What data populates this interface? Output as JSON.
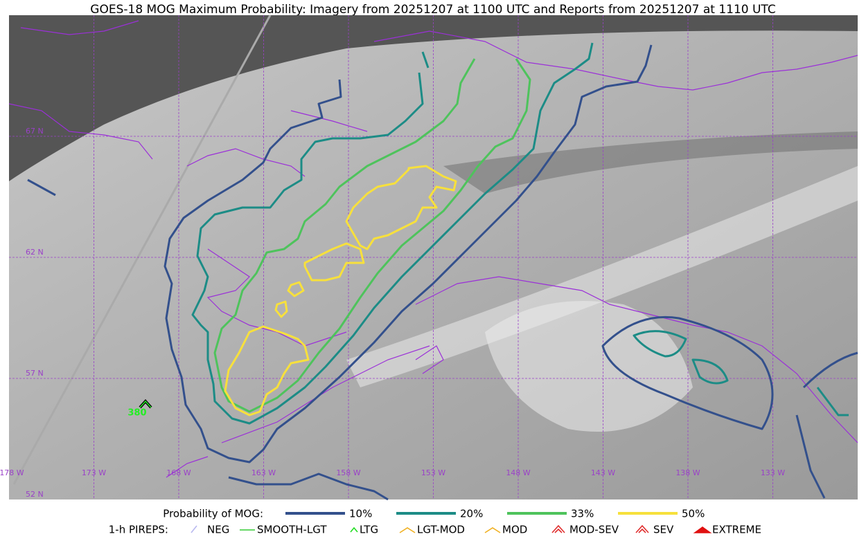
{
  "title": "GOES-18 MOG Maximum Probability: Imagery from 20251207 at 1100 UTC and Reports from 20251207 at 1110 UTC",
  "map": {
    "lat_labels": [
      "67 N",
      "62 N",
      "57 N",
      "52 N"
    ],
    "lon_labels": [
      "178 W",
      "173 W",
      "168 W",
      "163 W",
      "158 W",
      "153 W",
      "148 W",
      "143 W",
      "138 W",
      "133 W"
    ],
    "reports": [
      {
        "label": "380"
      }
    ]
  },
  "legend": {
    "probability": {
      "title": "Probability of MOG:",
      "items": [
        {
          "label": "10%",
          "color": "#33508c"
        },
        {
          "label": "20%",
          "color": "#1c8c86"
        },
        {
          "label": "33%",
          "color": "#4ec35c"
        },
        {
          "label": "50%",
          "color": "#f7e03c"
        }
      ]
    },
    "pireps": {
      "title": "1-h PIREPS:",
      "items": [
        {
          "label": "NEG",
          "color": "#b8b8f0"
        },
        {
          "label": "SMOOTH-LGT",
          "color": "#33cc33"
        },
        {
          "label": "LTG",
          "color": "#22dd22"
        },
        {
          "label": "LGT-MOD",
          "color": "#f0b020"
        },
        {
          "label": "MOD",
          "color": "#f0b020"
        },
        {
          "label": "MOD-SEV",
          "color": "#e03030"
        },
        {
          "label": "SEV",
          "color": "#e03030"
        },
        {
          "label": "EXTREME",
          "color": "#e01010"
        }
      ]
    }
  }
}
